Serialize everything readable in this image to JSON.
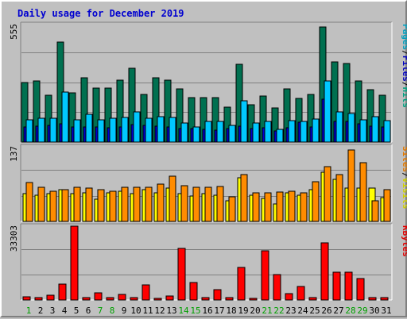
{
  "chart_data": {
    "type": "bar",
    "title": "Daily usage for December 2019",
    "categories": [
      "1",
      "2",
      "3",
      "4",
      "5",
      "6",
      "7",
      "8",
      "9",
      "10",
      "11",
      "12",
      "13",
      "14",
      "15",
      "16",
      "17",
      "18",
      "19",
      "20",
      "21",
      "22",
      "23",
      "24",
      "25",
      "26",
      "27",
      "28",
      "29",
      "30",
      "31"
    ],
    "weekend_days": [
      "1",
      "7",
      "8",
      "14",
      "15",
      "21",
      "22",
      "28",
      "29"
    ],
    "panels": [
      {
        "id": "hits_files_pages",
        "ymax": 555,
        "ymax_label": "555",
        "legend": [
          {
            "text": "Pages",
            "color": "#00a0c0"
          },
          {
            "text": "/",
            "color": "#000000"
          },
          {
            "text": "Files",
            "color": "#0000c0"
          },
          {
            "text": "/",
            "color": "#000000"
          },
          {
            "text": "Hits",
            "color": "#00a080"
          }
        ],
        "series": [
          {
            "name": "Hits",
            "color": "#007050",
            "values": [
              280,
              285,
              220,
              470,
              230,
              300,
              255,
              255,
              290,
              345,
              225,
              300,
              290,
              250,
              210,
              210,
              210,
              165,
              365,
              175,
              215,
              160,
              250,
              205,
              225,
              540,
              375,
              370,
              285,
              245,
              220
            ]
          },
          {
            "name": "Files",
            "color": "#0000d0",
            "values": [
              72,
              76,
              80,
              84,
              70,
              72,
              70,
              68,
              72,
              82,
              80,
              76,
              72,
              62,
              64,
              58,
              56,
              62,
              76,
              62,
              66,
              54,
              68,
              92,
              72,
              200,
              96,
              98,
              86,
              74,
              70
            ]
          },
          {
            "name": "Pages",
            "color": "#00c8ff",
            "values": [
              105,
              112,
              110,
              235,
              103,
              130,
              105,
              110,
              115,
              143,
              112,
              120,
              115,
              90,
              70,
              97,
              97,
              80,
              195,
              90,
              95,
              58,
              102,
              98,
              108,
              285,
              140,
              135,
              105,
              120,
              100
            ]
          }
        ]
      },
      {
        "id": "visits_sites",
        "ymax": 137,
        "ymax_label": "137",
        "legend": [
          {
            "text": "Sites",
            "color": "#e07800"
          },
          {
            "text": "/",
            "color": "#000000"
          },
          {
            "text": "Visits",
            "color": "#d0d000"
          }
        ],
        "series": [
          {
            "name": "Visits",
            "color": "#ffff00",
            "values": [
              50,
              48,
              50,
              58,
              50,
              52,
              40,
              52,
              55,
              50,
              58,
              52,
              60,
              50,
              46,
              50,
              48,
              38,
              80,
              48,
              42,
              32,
              52,
              48,
              58,
              90,
              76,
              60,
              60,
              60,
              43
            ]
          },
          {
            "name": "Sites",
            "color": "#ff8c00",
            "values": [
              70,
              62,
              55,
              58,
              62,
              60,
              58,
              55,
              62,
              62,
              62,
              68,
              82,
              65,
              62,
              62,
              64,
              45,
              85,
              52,
              52,
              53,
              55,
              52,
              72,
              100,
              85,
              130,
              106,
              38,
              58
            ]
          }
        ]
      },
      {
        "id": "kbytes",
        "ymax": 33303,
        "ymax_label": "33303",
        "legend": [
          {
            "text": "KBytes",
            "color": "#e00000"
          }
        ],
        "series": [
          {
            "name": "KBytes",
            "color": "#ff0000",
            "values": [
              1500,
              1000,
              2200,
              7000,
              33000,
              900,
              3300,
              900,
              2600,
              1100,
              6600,
              700,
              1800,
              23000,
              7800,
              1000,
              4600,
              900,
              14500,
              700,
              22000,
              11500,
              3000,
              6000,
              1100,
              25500,
              12500,
              12500,
              9700,
              900,
              900
            ]
          }
        ]
      }
    ]
  }
}
